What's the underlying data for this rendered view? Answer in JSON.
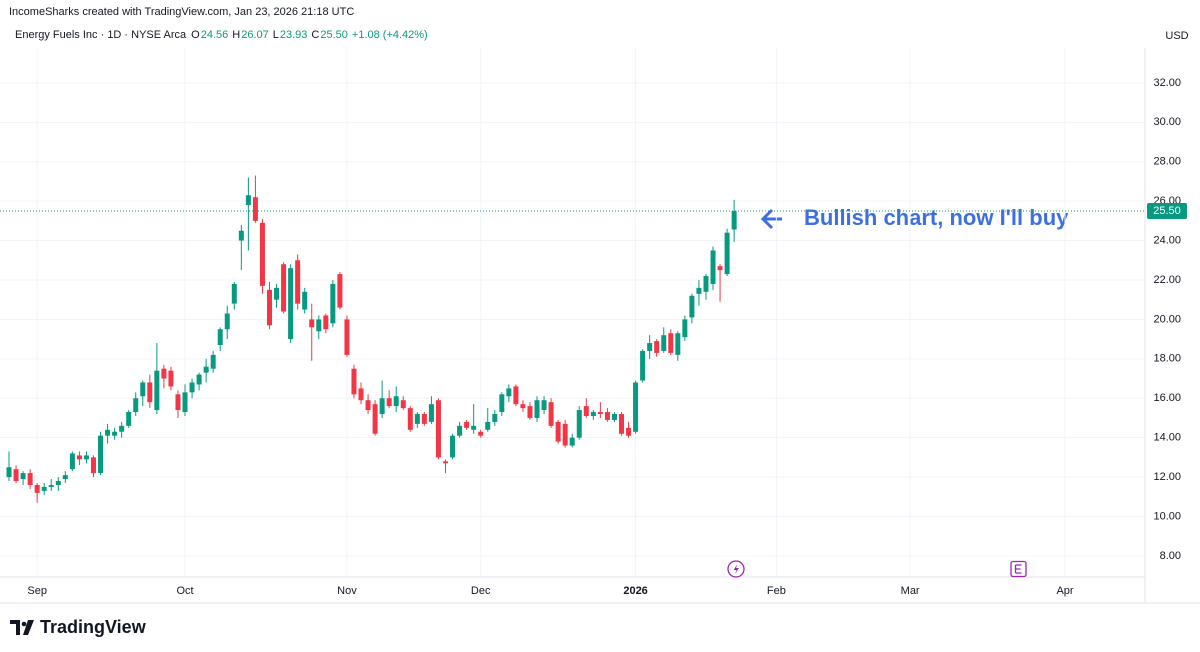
{
  "header": "IncomeSharks created with TradingView.com, Jan 23, 2026 21:18 UTC",
  "brand": "TradingView",
  "chart_data": {
    "type": "candlestick",
    "legend": {
      "name": "Energy Fuels Inc · 1D · NYSE Arca",
      "items": [
        {
          "label": "O",
          "value": "24.56"
        },
        {
          "label": "H",
          "value": "26.07"
        },
        {
          "label": "L",
          "value": "23.93"
        },
        {
          "label": "C",
          "value": "25.50"
        }
      ],
      "change": "+1.08 (+4.42%)"
    },
    "currency": "USD",
    "annotation": "Bullish chart, now I'll buy",
    "up_color": "#089981",
    "down_color": "#f23645",
    "last_price": {
      "value": 25.5,
      "label": "25.50"
    },
    "x": [
      0,
      1,
      2,
      3,
      4,
      5,
      6,
      7,
      8,
      9,
      10,
      11,
      12,
      13,
      14,
      15,
      16,
      17,
      18,
      19,
      20,
      21,
      22,
      23,
      24,
      25,
      26,
      27,
      28,
      29,
      30,
      31,
      32,
      33,
      34,
      35,
      36,
      37,
      38,
      39,
      40,
      41,
      42,
      43,
      44,
      45,
      46,
      47,
      48,
      49,
      50,
      51,
      52,
      53,
      54,
      55,
      56,
      57,
      58,
      59,
      60,
      61,
      62,
      63,
      64,
      65,
      66,
      67,
      68,
      69,
      70,
      71,
      72,
      73,
      74,
      75,
      76,
      77,
      78,
      79,
      80,
      81,
      82,
      83,
      84,
      85,
      86,
      87,
      88,
      89,
      90,
      91,
      92,
      93,
      94,
      95,
      96,
      97,
      98,
      99,
      100,
      101,
      102,
      103
    ],
    "open": [
      12.0,
      12.4,
      11.9,
      12.2,
      11.6,
      11.3,
      11.5,
      11.6,
      11.9,
      12.4,
      13.1,
      12.9,
      13.0,
      12.2,
      14.1,
      14.1,
      14.3,
      14.6,
      15.3,
      16.1,
      16.8,
      15.4,
      17.5,
      17.4,
      16.2,
      15.3,
      16.3,
      16.7,
      17.3,
      17.5,
      18.7,
      19.5,
      20.8,
      24.0,
      25.8,
      26.2,
      24.9,
      21.5,
      21.0,
      22.8,
      19.0,
      23.0,
      20.5,
      20.0,
      19.4,
      20.2,
      19.8,
      22.3,
      20.0,
      17.5,
      16.5,
      15.9,
      15.7,
      15.2,
      16.0,
      15.6,
      15.9,
      15.5,
      14.7,
      15.2,
      14.8,
      15.9,
      12.8,
      13.0,
      14.1,
      14.8,
      14.4,
      14.3,
      14.4,
      14.8,
      15.3,
      16.1,
      16.6,
      15.7,
      15.6,
      15.0,
      15.4,
      15.8,
      14.8,
      14.7,
      13.6,
      14.0,
      15.6,
      15.1,
      15.3,
      15.3,
      14.9,
      15.2,
      14.5,
      14.3,
      16.9,
      18.4,
      18.9,
      18.4,
      19.3,
      18.2,
      19.1,
      20.1,
      21.3,
      21.4,
      21.8,
      22.7,
      22.3,
      24.56
    ],
    "high": [
      13.3,
      12.6,
      12.3,
      12.4,
      11.7,
      11.7,
      11.9,
      12.0,
      12.3,
      13.3,
      13.3,
      13.3,
      13.1,
      14.3,
      14.7,
      14.5,
      14.8,
      15.4,
      16.3,
      16.9,
      17.2,
      18.8,
      17.7,
      17.6,
      16.4,
      16.7,
      17.0,
      17.3,
      18.0,
      18.4,
      19.6,
      20.7,
      21.9,
      24.8,
      27.2,
      27.3,
      25.1,
      21.9,
      21.8,
      22.9,
      22.8,
      23.3,
      21.6,
      20.8,
      20.2,
      20.3,
      22.0,
      22.4,
      20.2,
      17.7,
      16.8,
      16.2,
      15.9,
      16.9,
      16.4,
      16.6,
      16.1,
      15.6,
      15.3,
      15.3,
      16.1,
      16.0,
      12.9,
      14.2,
      14.8,
      14.9,
      15.7,
      14.4,
      15.5,
      15.4,
      16.3,
      16.7,
      16.7,
      15.9,
      15.8,
      16.1,
      16.1,
      16.0,
      14.9,
      14.9,
      14.2,
      15.6,
      16.0,
      15.4,
      15.8,
      15.5,
      15.3,
      15.3,
      14.8,
      16.9,
      18.5,
      19.2,
      19.0,
      19.6,
      19.5,
      19.4,
      20.2,
      21.3,
      22.0,
      22.3,
      23.7,
      22.8,
      24.6,
      26.07
    ],
    "low": [
      11.8,
      11.7,
      11.6,
      11.4,
      10.7,
      11.1,
      11.3,
      11.3,
      11.7,
      12.3,
      12.6,
      12.7,
      12.0,
      12.1,
      13.7,
      13.9,
      14.0,
      14.5,
      15.1,
      15.6,
      15.5,
      15.2,
      16.5,
      16.4,
      15.0,
      15.1,
      16.0,
      16.4,
      16.8,
      17.3,
      18.4,
      19.0,
      20.5,
      22.5,
      23.5,
      24.9,
      21.3,
      19.5,
      20.6,
      20.3,
      18.8,
      20.5,
      20.3,
      17.9,
      19.0,
      19.3,
      19.6,
      20.5,
      18.1,
      16.0,
      15.7,
      15.2,
      14.1,
      15.0,
      15.5,
      15.3,
      15.4,
      14.3,
      14.5,
      14.6,
      14.7,
      12.9,
      12.2,
      12.9,
      14.0,
      14.4,
      14.2,
      14.0,
      14.3,
      14.6,
      15.1,
      15.8,
      15.6,
      15.3,
      14.9,
      14.8,
      15.2,
      14.5,
      13.7,
      13.5,
      13.5,
      13.9,
      15.0,
      14.9,
      15.0,
      14.8,
      14.8,
      14.1,
      14.0,
      14.2,
      16.8,
      18.0,
      18.1,
      18.3,
      18.2,
      17.9,
      18.9,
      19.8,
      20.7,
      21.0,
      21.5,
      20.9,
      22.2,
      23.93
    ],
    "close": [
      12.5,
      11.8,
      12.2,
      11.6,
      11.2,
      11.5,
      11.6,
      11.8,
      12.1,
      13.2,
      12.9,
      13.1,
      12.2,
      14.1,
      14.4,
      14.3,
      14.6,
      15.3,
      16.0,
      16.8,
      15.8,
      17.4,
      17.0,
      16.6,
      15.4,
      16.3,
      16.8,
      17.2,
      17.6,
      18.2,
      19.5,
      20.3,
      21.8,
      24.5,
      26.3,
      25.0,
      21.7,
      19.7,
      21.6,
      20.4,
      22.6,
      20.8,
      21.4,
      19.6,
      20.0,
      19.5,
      21.8,
      20.6,
      18.2,
      16.2,
      15.9,
      15.4,
      14.2,
      16.0,
      15.6,
      16.1,
      15.5,
      14.4,
      15.2,
      14.7,
      15.7,
      13.0,
      12.7,
      14.1,
      14.6,
      14.5,
      14.6,
      14.1,
      14.8,
      15.2,
      16.2,
      16.5,
      15.7,
      15.5,
      15.0,
      15.9,
      15.9,
      14.6,
      13.8,
      13.6,
      14.0,
      15.4,
      15.1,
      15.3,
      15.2,
      14.9,
      15.2,
      14.2,
      14.1,
      16.8,
      18.4,
      18.8,
      18.3,
      19.2,
      18.3,
      19.3,
      20.0,
      21.2,
      21.6,
      22.2,
      23.5,
      22.5,
      24.4,
      25.5
    ],
    "xlim": [
      -1.28,
      161.36
    ],
    "xticks": [
      {
        "value": 4,
        "label": "Sep"
      },
      {
        "value": 25,
        "label": "Oct"
      },
      {
        "value": 48,
        "label": "Nov"
      },
      {
        "value": 67,
        "label": "Dec"
      },
      {
        "value": 89,
        "label": "2026"
      },
      {
        "value": 109,
        "label": "Feb"
      },
      {
        "value": 128,
        "label": "Mar"
      },
      {
        "value": 150,
        "label": "Apr"
      }
    ],
    "ylim": [
      6.93,
      33.67
    ],
    "yticks": [
      {
        "value": 8,
        "label": "8.00"
      },
      {
        "value": 10,
        "label": "10.00"
      },
      {
        "value": 12,
        "label": "12.00"
      },
      {
        "value": 14,
        "label": "14.00"
      },
      {
        "value": 16,
        "label": "16.00"
      },
      {
        "value": 18,
        "label": "18.00"
      },
      {
        "value": 20,
        "label": "20.00"
      },
      {
        "value": 22,
        "label": "22.00"
      },
      {
        "value": 24,
        "label": "24.00"
      },
      {
        "value": 26,
        "label": "26.00"
      },
      {
        "value": 28,
        "label": "28.00"
      },
      {
        "value": 30,
        "label": "30.00"
      },
      {
        "value": 32,
        "label": "32.00"
      }
    ],
    "grid": true
  }
}
